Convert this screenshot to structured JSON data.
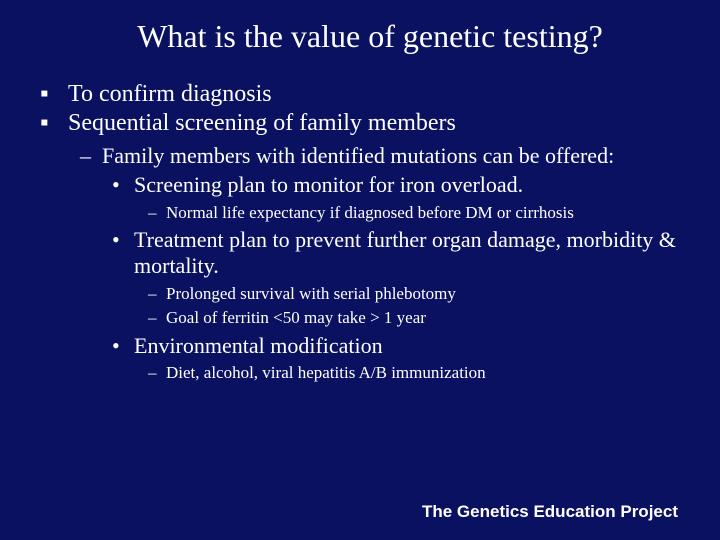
{
  "slide": {
    "background_color": "#0a1160",
    "text_color": "#ffffff",
    "title_font_family": "Times New Roman, serif",
    "body_font_family": "Times New Roman, serif",
    "footer_font_family": "Arial, sans-serif",
    "title": "What is the value of genetic testing?",
    "title_fontsize": 32,
    "bullets": {
      "l1_marker": "▪",
      "l2_marker": "–",
      "l3_marker": "•",
      "l4_marker": "–",
      "l1_fontsize": 24,
      "l2_fontsize": 22,
      "l3_fontsize": 22,
      "l4_fontsize": 17
    },
    "items": {
      "l1_a": "To confirm diagnosis",
      "l1_b": "Sequential screening of family members",
      "l2_a": "Family members with identified mutations can be offered:",
      "l3_a": "Screening plan to monitor for iron overload.",
      "l4_a": "Normal life expectancy if diagnosed before DM or cirrhosis",
      "l3_b": "Treatment plan to prevent further organ damage, morbidity & mortality.",
      "l4_b": "Prolonged survival with serial phlebotomy",
      "l4_c": "Goal of ferritin <50 may take > 1 year",
      "l3_c": "Environmental modification",
      "l4_d": "Diet, alcohol, viral hepatitis A/B immunization"
    },
    "footer": "The Genetics Education Project",
    "footer_fontsize": 17
  }
}
